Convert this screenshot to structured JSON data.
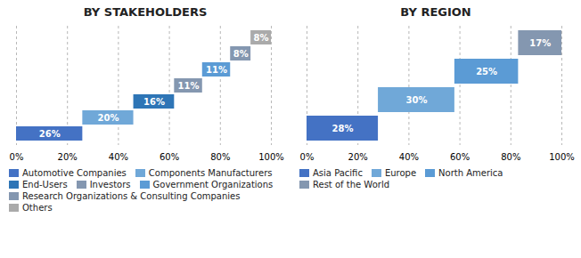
{
  "chart_data": [
    {
      "type": "bar",
      "orientation": "horizontal",
      "stacked": true,
      "title": "BY STAKEHOLDERS",
      "categories": [
        "Automotive Companies",
        "Components Manufacturers",
        "End-Users",
        "Investors",
        "Government Organizations",
        "Research Organizations & Consulting Companies",
        "Others"
      ],
      "values": [
        26,
        20,
        16,
        11,
        11,
        8,
        8
      ],
      "value_labels": [
        "26%",
        "20%",
        "16%",
        "11%",
        "11%",
        "8%",
        "8%"
      ],
      "colors": [
        "#4472C4",
        "#70A8D8",
        "#2E75B6",
        "#8497B0",
        "#5B9BD5",
        "#8497B0",
        "#AAAAAA"
      ],
      "xlim": [
        0,
        100
      ],
      "xticks": [
        {
          "value": 0,
          "label": "0%"
        },
        {
          "value": 20,
          "label": "20%"
        },
        {
          "value": 40,
          "label": "40%"
        },
        {
          "value": 60,
          "label": "60%"
        },
        {
          "value": 80,
          "label": "80%"
        },
        {
          "value": 100,
          "label": "100%"
        }
      ],
      "grid": true,
      "data_labels": true,
      "tick_labels": "x",
      "legend": "bottom"
    },
    {
      "type": "bar",
      "orientation": "horizontal",
      "stacked": true,
      "title": "BY REGION",
      "categories": [
        "Asia Pacific",
        "Europe",
        "North America",
        "Rest of the World"
      ],
      "values": [
        28,
        30,
        25,
        17
      ],
      "value_labels": [
        "28%",
        "30%",
        "25%",
        "17%"
      ],
      "colors": [
        "#4472C4",
        "#70A8D8",
        "#5B9BD5",
        "#8497B0"
      ],
      "xlim": [
        0,
        100
      ],
      "xticks": [
        {
          "value": 0,
          "label": "0%"
        },
        {
          "value": 20,
          "label": "20%"
        },
        {
          "value": 40,
          "label": "40%"
        },
        {
          "value": 60,
          "label": "60%"
        },
        {
          "value": 80,
          "label": "80%"
        },
        {
          "value": 100,
          "label": "100%"
        }
      ],
      "grid": true,
      "data_labels": true,
      "tick_labels": "x",
      "legend": "bottom"
    }
  ]
}
